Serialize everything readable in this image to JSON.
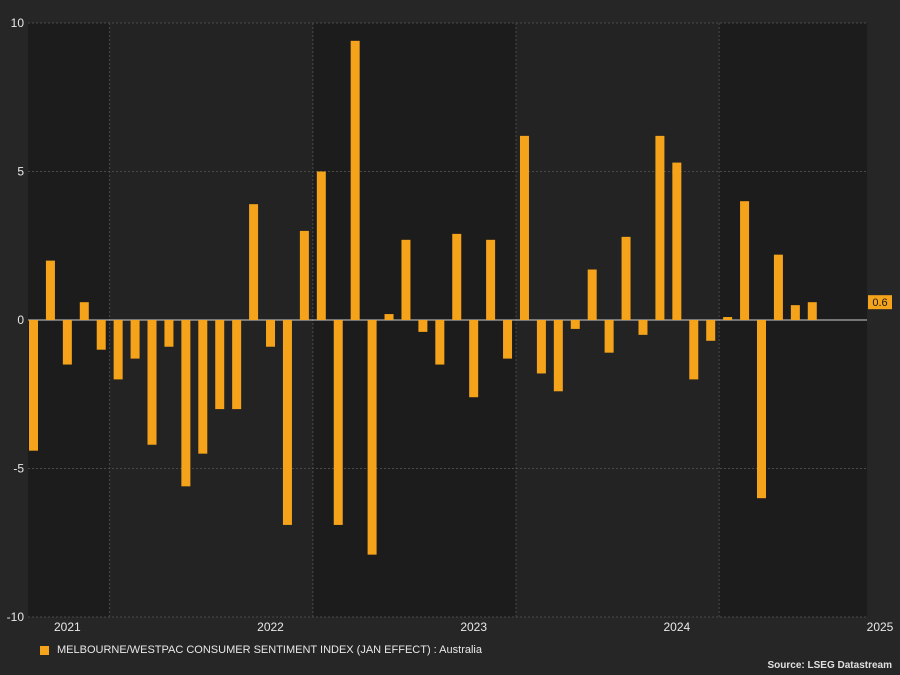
{
  "chart_data": {
    "type": "bar",
    "title": "",
    "xlabel": "",
    "ylabel": "",
    "ylim": [
      -10,
      10
    ],
    "yticks": [
      10,
      5,
      0,
      -5,
      -10
    ],
    "year_labels": [
      {
        "label": "2021",
        "index": 2
      },
      {
        "label": "2022",
        "index": 14
      },
      {
        "label": "2023",
        "index": 26
      },
      {
        "label": "2024",
        "index": 38
      },
      {
        "label": "2025",
        "index": 50
      }
    ],
    "year_boundaries_at_index": [
      5,
      17,
      29,
      41
    ],
    "grid": true,
    "legend_position": "bottom-left",
    "series": [
      {
        "name": "MELBOURNE/WESTPAC CONSUMER SENTIMENT INDEX (JAN EFFECT) : Australia",
        "color": "#f5a31a",
        "values": [
          -4.4,
          2.0,
          -1.5,
          0.6,
          -1.0,
          -2.0,
          -1.3,
          -4.2,
          -0.9,
          -5.6,
          -4.5,
          -3.0,
          -3.0,
          3.9,
          -0.9,
          -6.9,
          3.0,
          5.0,
          -6.9,
          9.4,
          -7.9,
          0.2,
          2.7,
          -0.4,
          -1.5,
          2.9,
          -2.6,
          2.7,
          -1.3,
          6.2,
          -1.8,
          -2.4,
          -0.3,
          1.7,
          -1.1,
          2.8,
          -0.5,
          6.2,
          5.3,
          -2.0,
          -0.7,
          0.1,
          4.0,
          -6.0,
          2.2,
          0.5,
          0.6
        ]
      }
    ],
    "last_value_label": "0.6"
  },
  "legend": {
    "label": "MELBOURNE/WESTPAC CONSUMER SENTIMENT INDEX (JAN EFFECT) : Australia"
  },
  "source": "Source: LSEG Datastream",
  "colors": {
    "background": "#262626",
    "plot_background": "#1c1c1c",
    "alt_band": "#232323",
    "bar": "#f5a31a",
    "axis_text": "#e8e8e8"
  }
}
